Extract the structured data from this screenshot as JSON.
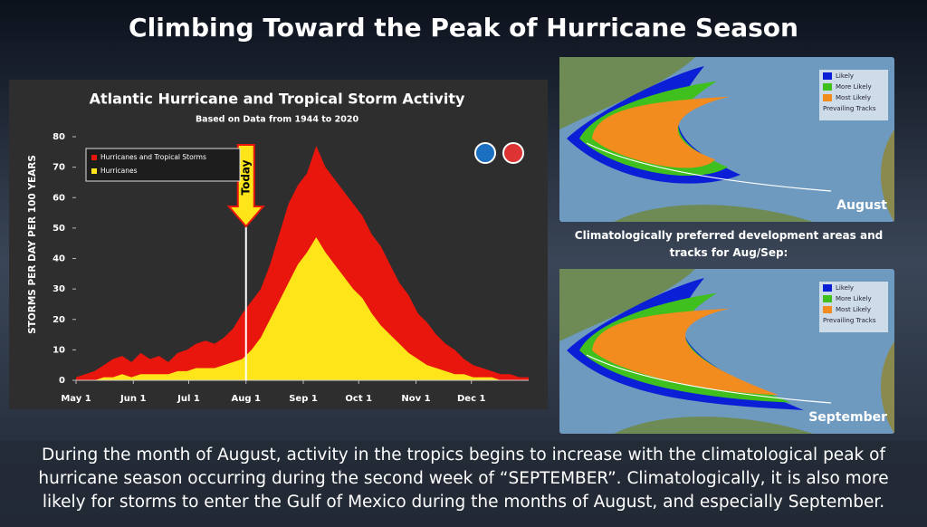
{
  "title": "Climbing Toward the Peak of Hurricane Season",
  "chart_data": {
    "type": "area",
    "title": "Atlantic Hurricane and Tropical Storm Activity",
    "subtitle": "Based on Data from 1944 to 2020",
    "y_label": "STORMS PER DAY PER 100 YEARS",
    "x": [
      0,
      5,
      10,
      15,
      20,
      25,
      30,
      35,
      40,
      45,
      50,
      55,
      60,
      65,
      70,
      75,
      80,
      85,
      90,
      95,
      100,
      105,
      110,
      115,
      120,
      125,
      130,
      135,
      140,
      145,
      150,
      155,
      160,
      165,
      170,
      175,
      180,
      185,
      190,
      195,
      200,
      205,
      210,
      215,
      220,
      225,
      230,
      235,
      240,
      245
    ],
    "series": [
      {
        "name": "Hurricanes and Tropical Storms",
        "color": "#e8160c",
        "values": [
          1,
          2,
          3,
          5,
          7,
          8,
          6,
          9,
          7,
          8,
          6,
          9,
          10,
          12,
          13,
          12,
          14,
          17,
          22,
          26,
          30,
          38,
          48,
          58,
          64,
          68,
          77,
          70,
          66,
          62,
          58,
          54,
          48,
          44,
          38,
          32,
          28,
          22,
          19,
          15,
          12,
          10,
          7,
          5,
          4,
          3,
          2,
          2,
          1,
          1
        ]
      },
      {
        "name": "Hurricanes",
        "color": "#fde51a",
        "values": [
          0,
          0,
          0,
          1,
          1,
          2,
          1,
          2,
          2,
          2,
          2,
          3,
          3,
          4,
          4,
          4,
          5,
          6,
          7,
          10,
          14,
          20,
          26,
          32,
          38,
          42,
          47,
          42,
          38,
          34,
          30,
          27,
          22,
          18,
          15,
          12,
          9,
          7,
          5,
          4,
          3,
          2,
          2,
          1,
          1,
          1,
          0,
          0,
          0,
          0
        ]
      }
    ],
    "xlim": [
      0,
      245
    ],
    "xticks": [
      {
        "value": 0,
        "label": "May 1"
      },
      {
        "value": 31,
        "label": "Jun 1"
      },
      {
        "value": 61,
        "label": "Jul 1"
      },
      {
        "value": 92,
        "label": "Aug 1"
      },
      {
        "value": 123,
        "label": "Sep 1"
      },
      {
        "value": 153,
        "label": "Oct 1"
      },
      {
        "value": 184,
        "label": "Nov 1"
      },
      {
        "value": 214,
        "label": "Dec 1"
      }
    ],
    "ylim": [
      0,
      80
    ],
    "yticks": [
      0,
      10,
      20,
      30,
      40,
      50,
      60,
      70,
      80
    ],
    "annotation": {
      "text": "Today",
      "x": 92
    }
  },
  "maps_caption": "Climatologically preferred development areas and tracks for Aug/Sep:",
  "maps": [
    {
      "label": "August",
      "legend": [
        "Likely",
        "More Likely",
        "Most Likely",
        "Prevailing Tracks"
      ]
    },
    {
      "label": "September",
      "legend": [
        "Likely",
        "More Likely",
        "Most Likely",
        "Prevailing Tracks"
      ]
    }
  ],
  "caption": "During the month of August, activity in the tropics begins to increase with the climatological peak of hurricane season occurring during the second week of “SEPTEMBER”. Climatologically, it is also more likely for storms to enter the Gulf of Mexico during the months of August, and especially September."
}
